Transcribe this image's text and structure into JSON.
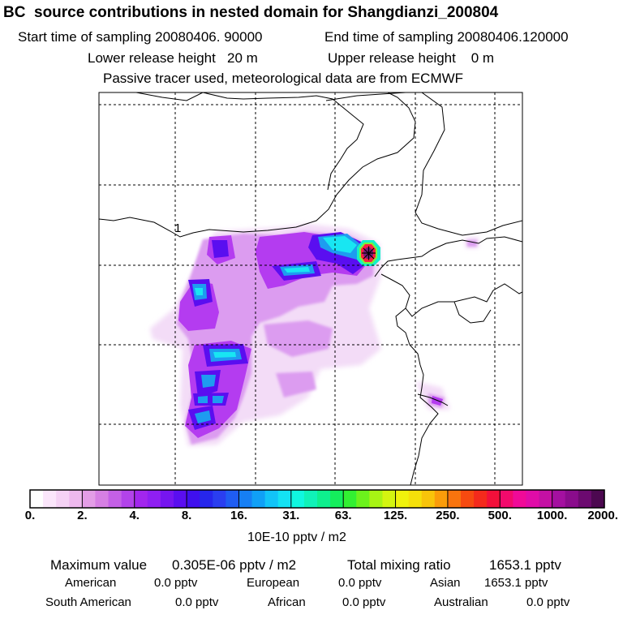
{
  "header": {
    "title": "BC  source contributions in nested domain for Shangdianzi_200804",
    "start_time": "Start time of sampling 20080406. 90000",
    "end_time": "End time of sampling 20080406.120000",
    "lower_release": "Lower release height   20 m",
    "upper_release": "Upper release height    0 m",
    "note": "Passive tracer used, meteorological data are from ECMWF"
  },
  "map": {
    "point_label": "1",
    "station_marker": "receptor-station",
    "plume_colors": [
      "#f3dcf7",
      "#dc9cf0",
      "#b43cf0",
      "#7a20e6",
      "#3b23d8",
      "#1e78f0",
      "#14d6f5",
      "#14f0c8",
      "#ff1e40",
      "#7a1a7a"
    ]
  },
  "legend": {
    "ticks": [
      "0.",
      "2.",
      "4.",
      "8.",
      "16.",
      "31.",
      "63.",
      "125.",
      "250.",
      "500.",
      "1000.",
      "2000."
    ],
    "colors": [
      "#ffffff",
      "#fbe6fb",
      "#f5d2f5",
      "#eeb9ee",
      "#e39de6",
      "#d67fe3",
      "#c460e6",
      "#b243ea",
      "#a226ee",
      "#8f1ff2",
      "#7615f0",
      "#5a0ef0",
      "#3f10ee",
      "#2626ec",
      "#2a3ef0",
      "#1f5df2",
      "#167ff4",
      "#10a0f6",
      "#12c4f8",
      "#14e2f4",
      "#10f7e0",
      "#10f2b8",
      "#0ef08e",
      "#14ee5c",
      "#32f032",
      "#6cf21c",
      "#a8f414",
      "#d4f510",
      "#f0f20c",
      "#f5e00a",
      "#f8c40a",
      "#fa9c0a",
      "#f8740e",
      "#f64a10",
      "#f42a1c",
      "#f2103a",
      "#f20a6c",
      "#f00a98",
      "#e00ca8",
      "#c410a4",
      "#a410a0",
      "#8a0c8c",
      "#6c0a70",
      "#4c0850"
    ],
    "units": "10E-10 pptv / m2"
  },
  "stats": {
    "max_label": "Maximum value",
    "max_value": "0.305E-06 pptv / m2",
    "total_label": "Total mixing ratio",
    "total_value": "1653.1 pptv",
    "regions": [
      {
        "name": "American",
        "value": "0.0 pptv"
      },
      {
        "name": "European",
        "value": "0.0 pptv"
      },
      {
        "name": "Asian",
        "value": "1653.1 pptv"
      },
      {
        "name": "South American",
        "value": "0.0 pptv"
      },
      {
        "name": "African",
        "value": "0.0 pptv"
      },
      {
        "name": "Australian",
        "value": "0.0 pptv"
      }
    ]
  }
}
